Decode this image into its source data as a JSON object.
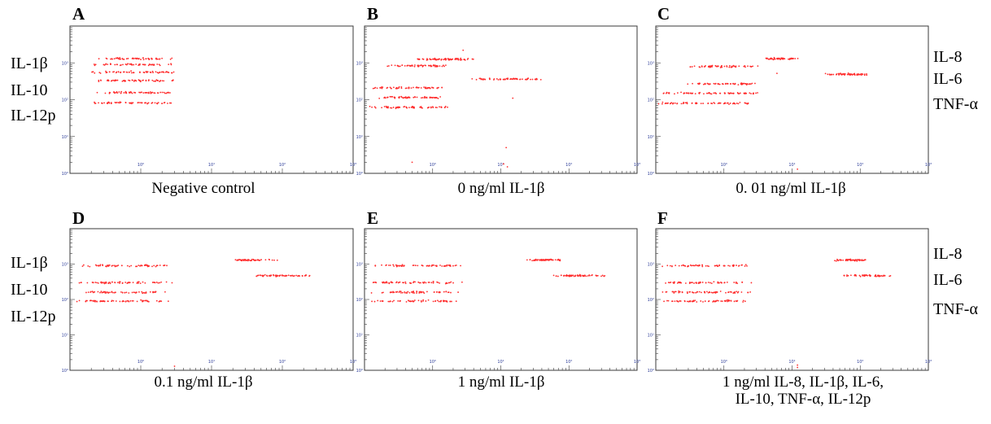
{
  "figure": {
    "left_labels": [
      "IL-1β",
      "IL-10",
      "IL-12p"
    ],
    "right_labels": [
      "IL-8",
      "IL-6",
      "TNF-α"
    ]
  },
  "colors": {
    "dot": "#ff2d2d",
    "axis": "#3a3a3a",
    "tick_label": "#2f3f9a"
  },
  "chart_data": [
    {
      "type": "scatter",
      "panel": "A",
      "caption": "Negative control",
      "xscale": "log",
      "yscale": "log",
      "xlim": [
        1,
        10000
      ],
      "ylim": [
        1,
        10000
      ],
      "x_tick_labels": [
        "10⁰",
        "10¹",
        "10²",
        "10³"
      ],
      "y_tick_labels": [
        "10⁰",
        "10¹",
        "10²",
        "10³"
      ],
      "clusters": [
        {
          "x": [
            2.2,
            28
          ],
          "y": 1300,
          "n": 55
        },
        {
          "x": [
            2.2,
            28
          ],
          "y": 900,
          "n": 55
        },
        {
          "x": [
            2.2,
            28
          ],
          "y": 560,
          "n": 60
        },
        {
          "x": [
            2.2,
            28
          ],
          "y": 330,
          "n": 60
        },
        {
          "x": [
            2.2,
            28
          ],
          "y": 155,
          "n": 60
        },
        {
          "x": [
            2.2,
            28
          ],
          "y": 82,
          "n": 60
        }
      ],
      "outliers": []
    },
    {
      "type": "scatter",
      "panel": "B",
      "caption": "0 ng/ml IL-1β",
      "xscale": "log",
      "yscale": "log",
      "xlim": [
        1,
        10000
      ],
      "ylim": [
        1,
        10000
      ],
      "x_tick_labels": [
        "10⁰",
        "10¹",
        "10²",
        "10³"
      ],
      "y_tick_labels": [
        "10⁰",
        "10¹",
        "10²",
        "10³"
      ],
      "clusters": [
        {
          "x": [
            5.5,
            40
          ],
          "y": 1250,
          "n": 70
        },
        {
          "x": [
            2.2,
            16
          ],
          "y": 830,
          "n": 60
        },
        {
          "x": [
            40,
            400
          ],
          "y": 360,
          "n": 60
        },
        {
          "x": [
            1.2,
            15
          ],
          "y": 210,
          "n": 60
        },
        {
          "x": [
            1.5,
            15
          ],
          "y": 115,
          "n": 60
        },
        {
          "x": [
            1.2,
            18
          ],
          "y": 62,
          "n": 60
        }
      ],
      "outliers": [
        {
          "x": 5,
          "y": 2
        },
        {
          "x": 120,
          "y": 5
        },
        {
          "x": 110,
          "y": 1.8
        },
        {
          "x": 125,
          "y": 1.5
        },
        {
          "x": 150,
          "y": 110
        },
        {
          "x": 28,
          "y": 2200
        }
      ]
    },
    {
      "type": "scatter",
      "panel": "C",
      "caption": "0. 01 ng/ml IL-1β",
      "xscale": "log",
      "yscale": "log",
      "xlim": [
        1,
        10000
      ],
      "ylim": [
        1,
        10000
      ],
      "x_tick_labels": [
        "10⁰",
        "10¹",
        "10²",
        "10³"
      ],
      "y_tick_labels": [
        "10⁰",
        "10¹",
        "10²",
        "10³"
      ],
      "clusters": [
        {
          "x": [
            40,
            120
          ],
          "y": 1300,
          "n": 50
        },
        {
          "x": [
            3,
            30
          ],
          "y": 800,
          "n": 60
        },
        {
          "x": [
            300,
            1400
          ],
          "y": 490,
          "n": 60
        },
        {
          "x": [
            3,
            30
          ],
          "y": 270,
          "n": 60
        },
        {
          "x": [
            1.1,
            30
          ],
          "y": 150,
          "n": 70
        },
        {
          "x": [
            1.1,
            30
          ],
          "y": 80,
          "n": 70
        }
      ],
      "outliers": [
        {
          "x": 120,
          "y": 1.3
        },
        {
          "x": 60,
          "y": 520
        }
      ]
    },
    {
      "type": "scatter",
      "panel": "D",
      "caption": "0.1 ng/ml IL-1β",
      "xscale": "log",
      "yscale": "log",
      "xlim": [
        1,
        10000
      ],
      "ylim": [
        1,
        10000
      ],
      "x_tick_labels": [
        "10⁰",
        "10¹",
        "10²",
        "10³"
      ],
      "y_tick_labels": [
        "10⁰",
        "10¹",
        "10²",
        "10³"
      ],
      "clusters": [
        {
          "x": [
            200,
            800
          ],
          "y": 1300,
          "n": 55
        },
        {
          "x": [
            1.3,
            25
          ],
          "y": 900,
          "n": 60
        },
        {
          "x": [
            450,
            2500
          ],
          "y": 470,
          "n": 60
        },
        {
          "x": [
            1.3,
            25
          ],
          "y": 300,
          "n": 60
        },
        {
          "x": [
            1.3,
            25
          ],
          "y": 160,
          "n": 60
        },
        {
          "x": [
            1.3,
            25
          ],
          "y": 90,
          "n": 60
        }
      ],
      "outliers": [
        {
          "x": 30,
          "y": 1.3
        }
      ]
    },
    {
      "type": "scatter",
      "panel": "E",
      "caption": "1 ng/ml IL-1β",
      "xscale": "log",
      "yscale": "log",
      "xlim": [
        1,
        10000
      ],
      "ylim": [
        1,
        10000
      ],
      "x_tick_labels": [
        "10⁰",
        "10¹",
        "10²",
        "10³"
      ],
      "y_tick_labels": [
        "10⁰",
        "10¹",
        "10²",
        "10³"
      ],
      "clusters": [
        {
          "x": [
            250,
            800
          ],
          "y": 1300,
          "n": 55
        },
        {
          "x": [
            1.3,
            25
          ],
          "y": 900,
          "n": 60
        },
        {
          "x": [
            600,
            3500
          ],
          "y": 470,
          "n": 60
        },
        {
          "x": [
            1.3,
            25
          ],
          "y": 300,
          "n": 60
        },
        {
          "x": [
            1.3,
            25
          ],
          "y": 160,
          "n": 60
        },
        {
          "x": [
            1.3,
            25
          ],
          "y": 90,
          "n": 60
        }
      ],
      "outliers": []
    },
    {
      "type": "scatter",
      "panel": "F",
      "caption": "1 ng/ml IL-8, IL-1β, IL-6,\nIL-10, TNF-α, IL-12p",
      "xscale": "log",
      "yscale": "log",
      "xlim": [
        1,
        10000
      ],
      "ylim": [
        1,
        10000
      ],
      "x_tick_labels": [
        "10⁰",
        "10¹",
        "10²",
        "10³"
      ],
      "y_tick_labels": [
        "10⁰",
        "10¹",
        "10²",
        "10³"
      ],
      "clusters": [
        {
          "x": [
            400,
            1300
          ],
          "y": 1300,
          "n": 55
        },
        {
          "x": [
            1.3,
            25
          ],
          "y": 900,
          "n": 60
        },
        {
          "x": [
            500,
            3000
          ],
          "y": 470,
          "n": 60
        },
        {
          "x": [
            1.3,
            25
          ],
          "y": 300,
          "n": 60
        },
        {
          "x": [
            1.3,
            25
          ],
          "y": 160,
          "n": 60
        },
        {
          "x": [
            1.3,
            25
          ],
          "y": 90,
          "n": 60
        }
      ],
      "outliers": [
        {
          "x": 120,
          "y": 1.4
        },
        {
          "x": 120,
          "y": 1.2
        }
      ]
    }
  ]
}
